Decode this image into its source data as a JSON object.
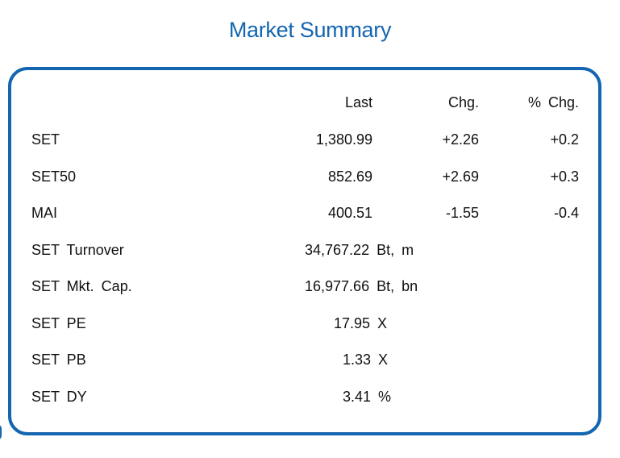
{
  "title": "Market Summary",
  "headers": {
    "last": "Last",
    "chg": "Chg.",
    "pct_chg": "% Chg."
  },
  "indices": [
    {
      "name": "SET",
      "last": "1,380.99",
      "chg": "+2.26",
      "pct": "+0.2"
    },
    {
      "name": "SET50",
      "last": "852.69",
      "chg": "+2.69",
      "pct": "+0.3"
    },
    {
      "name": "MAI",
      "last": "400.51",
      "chg": "-1.55",
      "pct": "-0.4"
    }
  ],
  "stats": [
    {
      "name": "SET Turnover",
      "value": "34,767.22 Bt, m"
    },
    {
      "name": "SET Mkt. Cap.",
      "value": "16,977.66 Bt, bn"
    },
    {
      "name": "SET PE",
      "value": "17.95 X"
    },
    {
      "name": "SET PB",
      "value": "1.33 X"
    },
    {
      "name": "SET DY",
      "value": "3.41 %"
    }
  ],
  "colors": {
    "accent": "#1466b0",
    "text": "#111111"
  }
}
